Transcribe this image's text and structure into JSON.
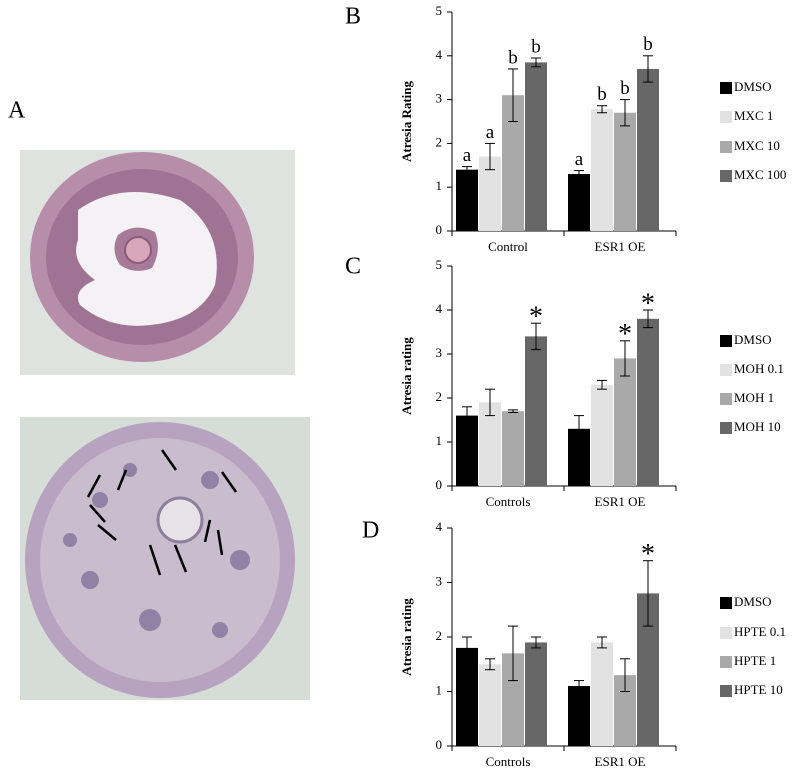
{
  "panel_a_label": "A",
  "chart_data": [
    {
      "type": "bar",
      "panel": "B",
      "ylabel": "Atresia Rating",
      "categories": [
        "Control",
        "ESR1 OE"
      ],
      "series": [
        {
          "name": "DMSO",
          "color": "#000000",
          "values": [
            1.4,
            1.3
          ],
          "errors": [
            0.07,
            0.08
          ],
          "annotations": [
            "a",
            "a"
          ]
        },
        {
          "name": "MXC 1",
          "color": "#e2e2e2",
          "values": [
            1.7,
            2.78
          ],
          "errors": [
            0.3,
            0.08
          ],
          "annotations": [
            "a",
            "b"
          ]
        },
        {
          "name": "MXC 10",
          "color": "#a9a9a9",
          "values": [
            3.1,
            2.7
          ],
          "errors": [
            0.6,
            0.3
          ],
          "annotations": [
            "b",
            "b"
          ]
        },
        {
          "name": "MXC 100",
          "color": "#676767",
          "values": [
            3.85,
            3.7
          ],
          "errors": [
            0.1,
            0.3
          ],
          "annotations": [
            "b",
            "b"
          ]
        }
      ],
      "ylim": [
        0,
        5
      ],
      "yticks": [
        0,
        1,
        2,
        3,
        4,
        5
      ]
    },
    {
      "type": "bar",
      "panel": "C",
      "ylabel": "Atresia rating",
      "categories": [
        "Controls",
        "ESR1 OE"
      ],
      "series": [
        {
          "name": "DMSO",
          "color": "#000000",
          "values": [
            1.6,
            1.3
          ],
          "errors": [
            0.2,
            0.3
          ],
          "annotations": [
            null,
            null
          ]
        },
        {
          "name": "MOH 0.1",
          "color": "#e2e2e2",
          "values": [
            1.9,
            2.3
          ],
          "errors": [
            0.3,
            0.1
          ],
          "annotations": [
            null,
            null
          ]
        },
        {
          "name": "MOH 1",
          "color": "#a9a9a9",
          "values": [
            1.7,
            2.9
          ],
          "errors": [
            0.03,
            0.4
          ],
          "annotations": [
            null,
            "*"
          ]
        },
        {
          "name": "MOH 10",
          "color": "#676767",
          "values": [
            3.4,
            3.8
          ],
          "errors": [
            0.3,
            0.2
          ],
          "annotations": [
            "*",
            "*"
          ]
        }
      ],
      "ylim": [
        0,
        5
      ],
      "yticks": [
        0,
        1,
        2,
        3,
        4,
        5
      ]
    },
    {
      "type": "bar",
      "panel": "D",
      "ylabel": "Atresia rating",
      "categories": [
        "Controls",
        "ESR1 OE"
      ],
      "series": [
        {
          "name": "DMSO",
          "color": "#000000",
          "values": [
            1.8,
            1.1
          ],
          "errors": [
            0.2,
            0.1
          ],
          "annotations": [
            null,
            null
          ]
        },
        {
          "name": "HPTE 0.1",
          "color": "#e2e2e2",
          "values": [
            1.5,
            1.9
          ],
          "errors": [
            0.1,
            0.1
          ],
          "annotations": [
            null,
            null
          ]
        },
        {
          "name": "HPTE 1",
          "color": "#a9a9a9",
          "values": [
            1.7,
            1.3
          ],
          "errors": [
            0.5,
            0.3
          ],
          "annotations": [
            null,
            null
          ]
        },
        {
          "name": "HPTE 10",
          "color": "#676767",
          "values": [
            1.9,
            2.8
          ],
          "errors": [
            0.1,
            0.6
          ],
          "annotations": [
            null,
            "*"
          ]
        }
      ],
      "ylim": [
        0,
        4
      ],
      "yticks": [
        0,
        1,
        2,
        3,
        4
      ]
    }
  ]
}
